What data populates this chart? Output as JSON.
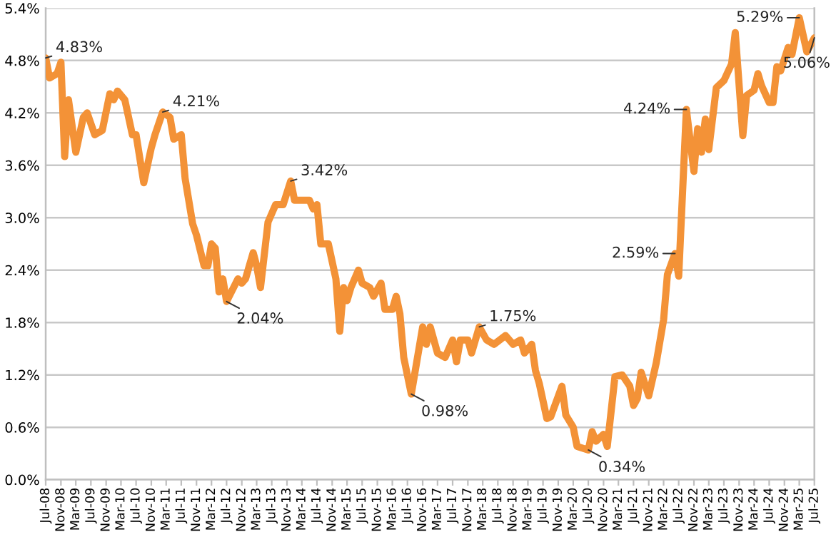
{
  "chart_data": {
    "type": "line",
    "x": [
      "2008-07",
      "2008-08",
      "2008-10",
      "2008-11",
      "2008-12",
      "2009-01",
      "2009-03",
      "2009-05",
      "2009-06",
      "2009-08",
      "2009-10",
      "2009-12",
      "2010-01",
      "2010-02",
      "2010-04",
      "2010-06",
      "2010-07",
      "2010-09",
      "2010-11",
      "2010-12",
      "2011-02",
      "2011-04",
      "2011-05",
      "2011-07",
      "2011-08",
      "2011-10",
      "2011-11",
      "2012-01",
      "2012-02",
      "2012-03",
      "2012-04",
      "2012-05",
      "2012-06",
      "2012-07",
      "2012-10",
      "2012-11",
      "2012-12",
      "2013-02",
      "2013-03",
      "2013-04",
      "2013-06",
      "2013-08",
      "2013-10",
      "2013-12",
      "2014-01",
      "2014-05",
      "2014-06",
      "2014-07",
      "2014-08",
      "2014-10",
      "2014-12",
      "2015-01",
      "2015-02",
      "2015-03",
      "2015-04",
      "2015-06",
      "2015-07",
      "2015-09",
      "2015-10",
      "2015-12",
      "2016-01",
      "2016-03",
      "2016-04",
      "2016-05",
      "2016-06",
      "2016-08",
      "2016-11",
      "2016-12",
      "2017-01",
      "2017-03",
      "2017-05",
      "2017-07",
      "2017-08",
      "2017-09",
      "2017-11",
      "2017-12",
      "2018-02",
      "2018-04",
      "2018-06",
      "2018-09",
      "2018-11",
      "2019-01",
      "2019-02",
      "2019-04",
      "2019-05",
      "2019-06",
      "2019-08",
      "2019-09",
      "2019-12",
      "2020-01",
      "2020-03",
      "2020-04",
      "2020-07",
      "2020-08",
      "2020-09",
      "2020-11",
      "2020-12",
      "2021-02",
      "2021-04",
      "2021-06",
      "2021-07",
      "2021-08",
      "2021-09",
      "2021-11",
      "2022-01",
      "2022-03",
      "2022-04",
      "2022-06",
      "2022-07",
      "2022-09",
      "2022-11",
      "2022-12",
      "2023-01",
      "2023-02",
      "2023-03",
      "2023-05",
      "2023-07",
      "2023-09",
      "2023-10",
      "2023-12",
      "2024-01",
      "2024-03",
      "2024-04",
      "2024-05",
      "2024-07",
      "2024-08",
      "2024-09",
      "2024-10",
      "2024-12",
      "2025-01",
      "2025-03",
      "2025-05",
      "2025-07"
    ],
    "series": [
      {
        "color": "#f39237",
        "values": [
          4.83,
          4.6,
          4.65,
          4.78,
          3.7,
          4.35,
          3.75,
          4.15,
          4.2,
          3.95,
          4.0,
          4.42,
          4.35,
          4.45,
          4.35,
          3.95,
          3.95,
          3.4,
          3.8,
          3.95,
          4.21,
          4.15,
          3.9,
          3.95,
          3.45,
          2.93,
          2.8,
          2.45,
          2.45,
          2.7,
          2.65,
          2.15,
          2.3,
          2.04,
          2.3,
          2.25,
          2.3,
          2.6,
          2.45,
          2.2,
          2.95,
          3.15,
          3.15,
          3.42,
          3.2,
          3.2,
          3.1,
          3.15,
          2.7,
          2.7,
          2.3,
          1.7,
          2.2,
          2.05,
          2.2,
          2.4,
          2.25,
          2.2,
          2.1,
          2.25,
          1.95,
          1.95,
          2.1,
          1.9,
          1.4,
          0.98,
          1.75,
          1.55,
          1.75,
          1.45,
          1.4,
          1.6,
          1.35,
          1.6,
          1.6,
          1.45,
          1.75,
          1.6,
          1.55,
          1.65,
          1.55,
          1.6,
          1.45,
          1.55,
          1.25,
          1.1,
          0.7,
          0.72,
          1.07,
          0.74,
          0.6,
          0.38,
          0.34,
          0.55,
          0.44,
          0.52,
          0.38,
          1.18,
          1.2,
          1.07,
          0.85,
          0.93,
          1.23,
          0.96,
          1.34,
          1.83,
          2.35,
          2.59,
          2.33,
          4.24,
          3.53,
          4.02,
          3.75,
          4.13,
          3.78,
          4.49,
          4.57,
          4.76,
          5.12,
          3.94,
          4.4,
          4.46,
          4.65,
          4.51,
          4.32,
          4.32,
          4.73,
          4.68,
          4.95,
          4.87,
          5.29,
          4.9,
          5.06
        ]
      }
    ],
    "ylim": [
      0,
      5.4
    ],
    "yticks": [
      {
        "value": 0,
        "label": "0.0%"
      },
      {
        "value": 0.6,
        "label": "0.6%"
      },
      {
        "value": 1.2,
        "label": "1.2%"
      },
      {
        "value": 1.8,
        "label": "1.8%"
      },
      {
        "value": 2.4,
        "label": "2.4%"
      },
      {
        "value": 3.0,
        "label": "3.0%"
      },
      {
        "value": 3.6,
        "label": "3.6%"
      },
      {
        "value": 4.2,
        "label": "4.2%"
      },
      {
        "value": 4.8,
        "label": "4.8%"
      },
      {
        "value": 5.4,
        "label": "5.4%"
      }
    ],
    "xlim": [
      "2008-07",
      "2025-07"
    ],
    "xticks": [
      {
        "value": "2008-07",
        "label": "Jul-08"
      },
      {
        "value": "2008-11",
        "label": "Nov-08"
      },
      {
        "value": "2009-03",
        "label": "Mar-09"
      },
      {
        "value": "2009-07",
        "label": "Jul-09"
      },
      {
        "value": "2009-11",
        "label": "Nov-09"
      },
      {
        "value": "2010-03",
        "label": "Mar-10"
      },
      {
        "value": "2010-07",
        "label": "Jul-10"
      },
      {
        "value": "2010-11",
        "label": "Nov-10"
      },
      {
        "value": "2011-03",
        "label": "Mar-11"
      },
      {
        "value": "2011-07",
        "label": "Jul-11"
      },
      {
        "value": "2011-11",
        "label": "Nov-11"
      },
      {
        "value": "2012-03",
        "label": "Mar-12"
      },
      {
        "value": "2012-07",
        "label": "Jul-12"
      },
      {
        "value": "2012-11",
        "label": "Nov-12"
      },
      {
        "value": "2013-03",
        "label": "Mar-13"
      },
      {
        "value": "2013-07",
        "label": "Jul-13"
      },
      {
        "value": "2013-11",
        "label": "Nov-13"
      },
      {
        "value": "2014-03",
        "label": "Mar-14"
      },
      {
        "value": "2014-07",
        "label": "Jul-14"
      },
      {
        "value": "2014-11",
        "label": "Nov-14"
      },
      {
        "value": "2015-03",
        "label": "Mar-15"
      },
      {
        "value": "2015-07",
        "label": "Jul-15"
      },
      {
        "value": "2015-11",
        "label": "Nov-15"
      },
      {
        "value": "2016-03",
        "label": "Mar-16"
      },
      {
        "value": "2016-07",
        "label": "Jul-16"
      },
      {
        "value": "2016-11",
        "label": "Nov-16"
      },
      {
        "value": "2017-03",
        "label": "Mar-17"
      },
      {
        "value": "2017-07",
        "label": "Jul-17"
      },
      {
        "value": "2017-11",
        "label": "Nov-17"
      },
      {
        "value": "2018-03",
        "label": "Mar-18"
      },
      {
        "value": "2018-07",
        "label": "Jul-18"
      },
      {
        "value": "2018-11",
        "label": "Nov-18"
      },
      {
        "value": "2019-03",
        "label": "Mar-19"
      },
      {
        "value": "2019-07",
        "label": "Jul-19"
      },
      {
        "value": "2019-11",
        "label": "Nov-19"
      },
      {
        "value": "2020-03",
        "label": "Mar-20"
      },
      {
        "value": "2020-07",
        "label": "Jul-20"
      },
      {
        "value": "2020-11",
        "label": "Nov-20"
      },
      {
        "value": "2021-03",
        "label": "Mar-21"
      },
      {
        "value": "2021-07",
        "label": "Jul-21"
      },
      {
        "value": "2021-11",
        "label": "Nov-21"
      },
      {
        "value": "2022-03",
        "label": "Mar-22"
      },
      {
        "value": "2022-07",
        "label": "Jul-22"
      },
      {
        "value": "2022-11",
        "label": "Nov-22"
      },
      {
        "value": "2023-03",
        "label": "Mar-23"
      },
      {
        "value": "2023-07",
        "label": "Jul-23"
      },
      {
        "value": "2023-11",
        "label": "Nov-23"
      },
      {
        "value": "2024-03",
        "label": "Mar-24"
      },
      {
        "value": "2024-07",
        "label": "Jul-24"
      },
      {
        "value": "2024-11",
        "label": "Nov-24"
      },
      {
        "value": "2025-03",
        "label": "Mar-25"
      },
      {
        "value": "2025-07",
        "label": "Jul-25"
      }
    ],
    "grid": "y",
    "marker": "none",
    "line_style": "solid",
    "annotations": [
      {
        "text": "4.83%",
        "x": "2008-07",
        "y": 4.83
      },
      {
        "text": "4.21%",
        "x": "2011-02",
        "y": 4.21
      },
      {
        "text": "2.04%",
        "x": "2012-07",
        "y": 2.04
      },
      {
        "text": "3.42%",
        "x": "2013-12",
        "y": 3.42
      },
      {
        "text": "0.98%",
        "x": "2016-08",
        "y": 0.98
      },
      {
        "text": "1.75%",
        "x": "2018-02",
        "y": 1.75
      },
      {
        "text": "0.34%",
        "x": "2020-07",
        "y": 0.34
      },
      {
        "text": "2.59%",
        "x": "2022-06",
        "y": 2.59
      },
      {
        "text": "4.24%",
        "x": "2022-09",
        "y": 4.24
      },
      {
        "text": "5.29%",
        "x": "2025-03",
        "y": 5.29
      },
      {
        "text": "5.06%",
        "x": "2025-07",
        "y": 5.06
      }
    ]
  }
}
